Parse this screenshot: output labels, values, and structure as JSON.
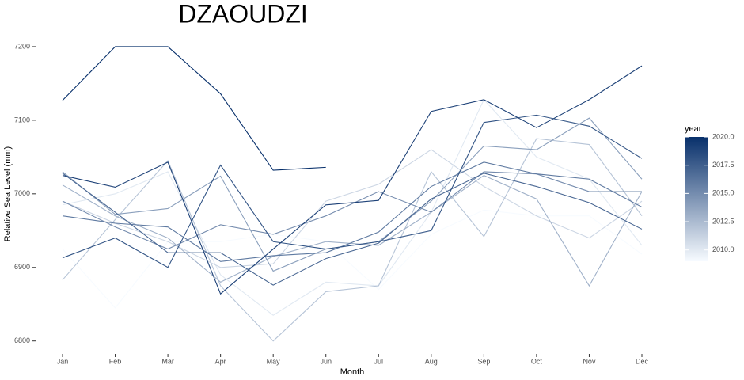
{
  "chart_data": {
    "type": "line",
    "title": "DZAOUDZI",
    "x_label": "Month",
    "y_label": "Relative Sea Level (mm)",
    "categories": [
      "Jan",
      "Feb",
      "Mar",
      "Apr",
      "May",
      "Jun",
      "Jul",
      "Aug",
      "Sep",
      "Oct",
      "Nov",
      "Dec"
    ],
    "ylim": [
      6790,
      7215
    ],
    "yticks": [
      6800,
      6900,
      7000,
      7100,
      7200
    ],
    "colorbar": {
      "title": "year",
      "lim": [
        2009,
        2020
      ],
      "low": "#f7fbff",
      "high": "#08306b",
      "ticks": [
        {
          "value": 2010,
          "label": "2010.0"
        },
        {
          "value": 2012.5,
          "label": "2012.5"
        },
        {
          "value": 2015,
          "label": "2015.0"
        },
        {
          "value": 2017.5,
          "label": "2017.5"
        },
        {
          "value": 2020,
          "label": "2020.0"
        }
      ]
    },
    "series": [
      {
        "year": 2009,
        "values": [
          6925,
          6845,
          6935,
          6935,
          6945,
          6935,
          6870,
          6945,
          6978,
          6970,
          6970,
          6918
        ]
      },
      {
        "year": 2010,
        "values": [
          6985,
          7000,
          7030,
          6890,
          6835,
          6880,
          6875,
          6975,
          7128,
          7050,
          7020,
          6930
        ]
      },
      {
        "year": 2011,
        "values": [
          6990,
          6960,
          6935,
          6900,
          6905,
          6990,
          7013,
          7060,
          7010,
          6970,
          6940,
          6990
        ]
      },
      {
        "year": 2012,
        "values": [
          6883,
          6965,
          7045,
          6875,
          6800,
          6867,
          6875,
          7030,
          6942,
          7075,
          7067,
          6970
        ]
      },
      {
        "year": 2013,
        "values": [
          7012,
          6970,
          6940,
          6880,
          6915,
          6935,
          6930,
          6975,
          7025,
          6993,
          6875,
          7003
        ]
      },
      {
        "year": 2014,
        "values": [
          7030,
          6972,
          6980,
          7024,
          6895,
          6925,
          6935,
          6990,
          7065,
          7060,
          7103,
          7020
        ]
      },
      {
        "year": 2015,
        "values": [
          6990,
          6955,
          6925,
          6958,
          6945,
          6970,
          7003,
          6975,
          7030,
          7027,
          7003,
          7003
        ]
      },
      {
        "year": 2016,
        "values": [
          6970,
          6960,
          6955,
          6908,
          6916,
          6920,
          6948,
          7010,
          7043,
          7027,
          7020,
          6982
        ]
      },
      {
        "year": 2017,
        "values": [
          7028,
          6975,
          6920,
          6920,
          6876,
          6912,
          6933,
          6993,
          7028,
          7010,
          6988,
          6952
        ]
      },
      {
        "year": 2018,
        "values": [
          6913,
          6940,
          6900,
          7039,
          6935,
          6925,
          6935,
          6950,
          7097,
          7107,
          7092,
          7048
        ]
      },
      {
        "year": 2019,
        "values": [
          7025,
          7009,
          7043,
          6864,
          6925,
          6985,
          6991,
          7112,
          7128,
          7090,
          7128,
          7174
        ]
      },
      {
        "year": 2020,
        "values": [
          7127,
          7200,
          7200,
          7136,
          7032,
          7036,
          null,
          null,
          null,
          null,
          null,
          null
        ]
      }
    ]
  }
}
